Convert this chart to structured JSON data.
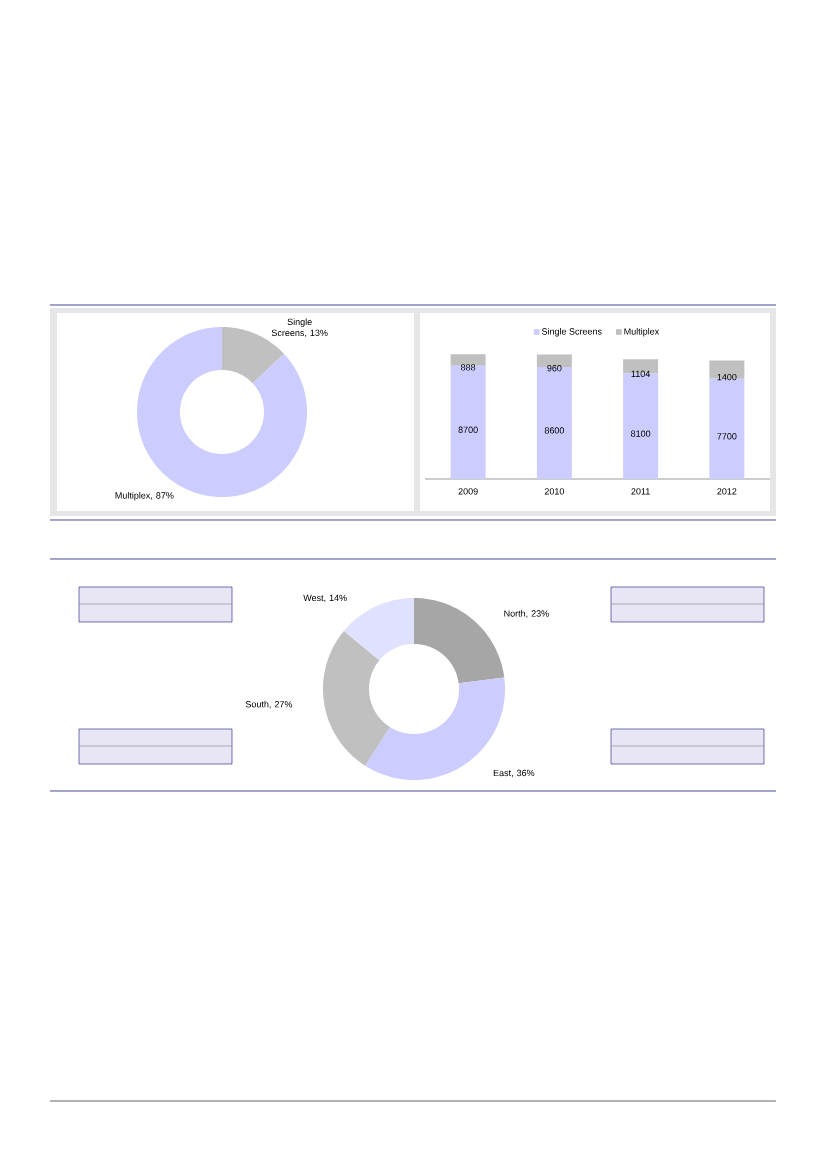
{
  "chart_data": [
    {
      "type": "donut",
      "categories": [
        "Single Screens",
        "Multiplex"
      ],
      "values": [
        13,
        87
      ],
      "colors": [
        "#c0c0c0",
        "#ccccff"
      ],
      "value_labels": [
        ", 13%",
        ", 87%"
      ]
    },
    {
      "type": "bar",
      "stacked": true,
      "categories": [
        "2009",
        "2010",
        "2011",
        "2012"
      ],
      "series": [
        {
          "name": "Single Screens",
          "color": "#ccccff",
          "values": [
            8700,
            8600,
            8100,
            7700
          ]
        },
        {
          "name": "Multiplex",
          "color": "#c0c0c0",
          "values": [
            888,
            960,
            1104,
            1400
          ]
        }
      ],
      "data_labels": true,
      "legend": "top"
    },
    {
      "type": "donut",
      "categories": [
        "North",
        "East",
        "South",
        "West"
      ],
      "values": [
        23,
        36,
        27,
        14
      ],
      "colors": [
        "#a6a6a6",
        "#ccccff",
        "#c0c0c0",
        "#e0e0ff"
      ],
      "value_labels": [
        ", 23%",
        ", 36%",
        ", 27%",
        ", 14%"
      ]
    }
  ]
}
